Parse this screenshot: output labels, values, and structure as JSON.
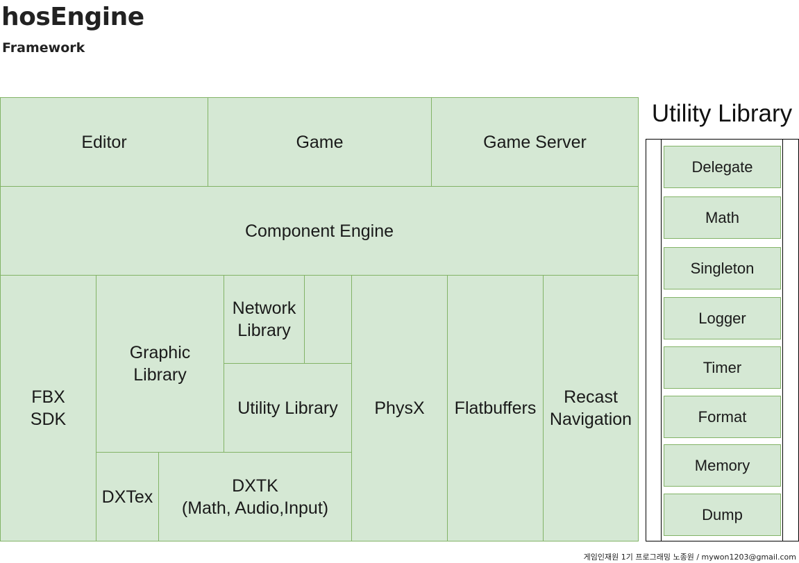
{
  "header": {
    "title": "hosEngine",
    "subtitle": "Framework"
  },
  "diagram": {
    "editor": "Editor",
    "game": "Game",
    "game_server": "Game Server",
    "component_engine": "Component Engine",
    "fbx_sdk": "FBX\nSDK",
    "graphic_library": "Graphic\nLibrary",
    "network_library": "Network\nLibrary",
    "utility_library": "Utility Library",
    "physx": "PhysX",
    "flatbuffers": "Flatbuffers",
    "recast_navigation": "Recast\nNavigation",
    "dxtex": "DXTex",
    "dxtk": "DXTK\n(Math, Audio,Input)"
  },
  "utility_panel": {
    "title": "Utility Library",
    "items": [
      "Delegate",
      "Math",
      "Singleton",
      "Logger",
      "Timer",
      "Format",
      "Memory",
      "Dump"
    ]
  },
  "footer": {
    "credit": "게임인재원 1기 프로그래밍 노종원 / mywon1203@gmail.com"
  },
  "colors": {
    "box_fill": "#d5e8d4",
    "box_border": "#82b366"
  }
}
